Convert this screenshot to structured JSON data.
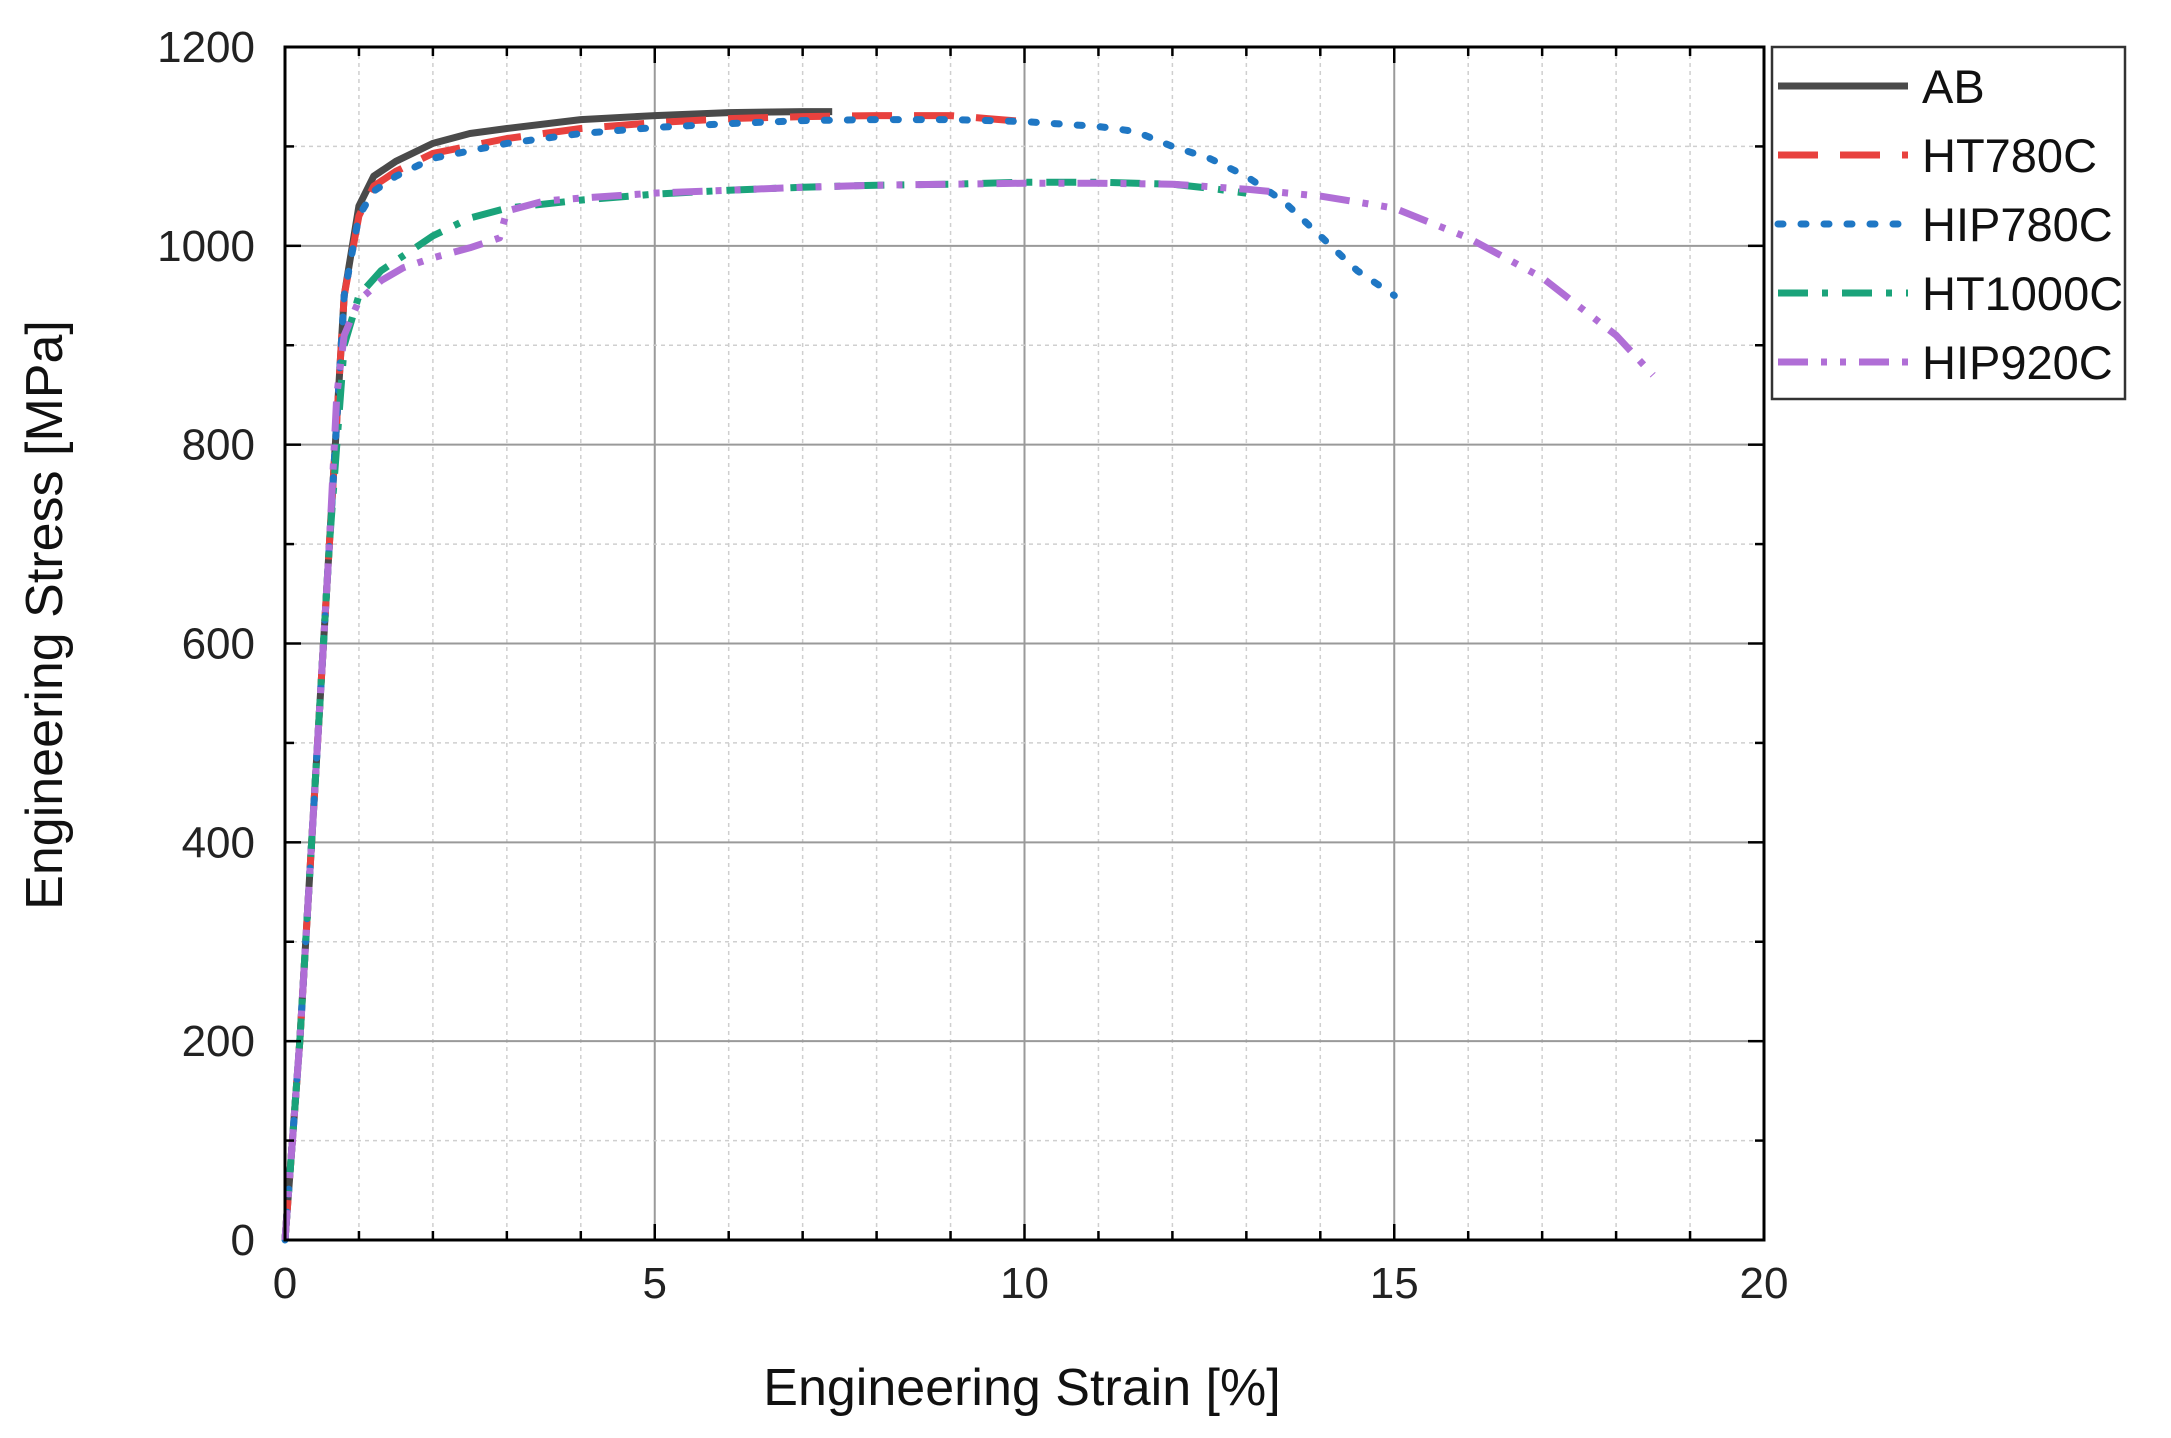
{
  "chart_data": {
    "type": "line",
    "title": "",
    "xlabel": "Engineering Strain [%]",
    "ylabel": "Engineering Stress [MPa]",
    "xlim": [
      0,
      20
    ],
    "ylim": [
      0,
      1200
    ],
    "x_ticks": [
      "0",
      "5",
      "10",
      "15",
      "20"
    ],
    "y_ticks": [
      "0",
      "200",
      "400",
      "600",
      "800",
      "1000",
      "1200"
    ],
    "grid": true,
    "legend_position": "top-right outside",
    "series": [
      {
        "name": "AB",
        "color": "#4a4a4a",
        "style": "solid",
        "points": [
          [
            0,
            0
          ],
          [
            0.2,
            200
          ],
          [
            0.4,
            450
          ],
          [
            0.6,
            700
          ],
          [
            0.8,
            950
          ],
          [
            1.0,
            1040
          ],
          [
            1.2,
            1070
          ],
          [
            1.5,
            1085
          ],
          [
            2.0,
            1103
          ],
          [
            2.5,
            1113
          ],
          [
            3.0,
            1118
          ],
          [
            4.0,
            1127
          ],
          [
            5.0,
            1131
          ],
          [
            6.0,
            1134
          ],
          [
            7.0,
            1135
          ],
          [
            7.4,
            1135
          ]
        ]
      },
      {
        "name": "HT780C",
        "color": "#e8413e",
        "style": "dash",
        "points": [
          [
            0,
            0
          ],
          [
            0.2,
            200
          ],
          [
            0.4,
            450
          ],
          [
            0.6,
            700
          ],
          [
            0.8,
            950
          ],
          [
            1.0,
            1030
          ],
          [
            1.2,
            1060
          ],
          [
            1.5,
            1075
          ],
          [
            2.0,
            1093
          ],
          [
            3.0,
            1108
          ],
          [
            4.0,
            1118
          ],
          [
            5.0,
            1124
          ],
          [
            6.0,
            1128
          ],
          [
            7.0,
            1130
          ],
          [
            8.0,
            1131
          ],
          [
            9.0,
            1131
          ],
          [
            9.5,
            1128
          ],
          [
            10.0,
            1125
          ]
        ]
      },
      {
        "name": "HIP780C",
        "color": "#1f77c4",
        "style": "dot",
        "points": [
          [
            0,
            0
          ],
          [
            0.2,
            200
          ],
          [
            0.4,
            450
          ],
          [
            0.6,
            700
          ],
          [
            0.8,
            950
          ],
          [
            1.0,
            1030
          ],
          [
            1.2,
            1055
          ],
          [
            1.5,
            1070
          ],
          [
            2.0,
            1088
          ],
          [
            3.0,
            1103
          ],
          [
            4.0,
            1113
          ],
          [
            5.0,
            1119
          ],
          [
            6.0,
            1123
          ],
          [
            7.0,
            1126
          ],
          [
            8.0,
            1127
          ],
          [
            9.0,
            1127
          ],
          [
            10.0,
            1125
          ],
          [
            11.0,
            1120
          ],
          [
            11.5,
            1115
          ],
          [
            12.0,
            1100
          ],
          [
            12.5,
            1088
          ],
          [
            13.0,
            1070
          ],
          [
            13.5,
            1045
          ],
          [
            14.0,
            1010
          ],
          [
            14.5,
            975
          ],
          [
            15.0,
            950
          ]
        ]
      },
      {
        "name": "HT1000C",
        "color": "#1aa37a",
        "style": "dashdot",
        "points": [
          [
            0,
            0
          ],
          [
            0.2,
            200
          ],
          [
            0.4,
            450
          ],
          [
            0.6,
            700
          ],
          [
            0.8,
            900
          ],
          [
            1.0,
            950
          ],
          [
            1.3,
            975
          ],
          [
            1.6,
            990
          ],
          [
            2.0,
            1010
          ],
          [
            2.5,
            1028
          ],
          [
            3.0,
            1038
          ],
          [
            4.0,
            1046
          ],
          [
            5.0,
            1052
          ],
          [
            6.0,
            1056
          ],
          [
            7.0,
            1059
          ],
          [
            8.0,
            1061
          ],
          [
            9.0,
            1062
          ],
          [
            10.0,
            1064
          ],
          [
            11.0,
            1064
          ],
          [
            12.0,
            1062
          ],
          [
            12.5,
            1058
          ],
          [
            13.0,
            1053
          ]
        ]
      },
      {
        "name": "HIP920C",
        "color": "#b06ed6",
        "style": "dashdotdot",
        "points": [
          [
            0,
            0
          ],
          [
            0.2,
            200
          ],
          [
            0.4,
            450
          ],
          [
            0.6,
            700
          ],
          [
            0.7,
            850
          ],
          [
            0.8,
            910
          ],
          [
            1.0,
            945
          ],
          [
            1.3,
            965
          ],
          [
            1.6,
            978
          ],
          [
            2.0,
            988
          ],
          [
            2.5,
            998
          ],
          [
            2.9,
            1008
          ],
          [
            3.0,
            1035
          ],
          [
            3.5,
            1045
          ],
          [
            4.0,
            1048
          ],
          [
            5.0,
            1053
          ],
          [
            6.0,
            1056
          ],
          [
            7.0,
            1059
          ],
          [
            8.0,
            1061
          ],
          [
            9.0,
            1062
          ],
          [
            10.0,
            1063
          ],
          [
            11.0,
            1063
          ],
          [
            12.0,
            1062
          ],
          [
            13.0,
            1057
          ],
          [
            14.0,
            1050
          ],
          [
            15.0,
            1038
          ],
          [
            16.0,
            1008
          ],
          [
            17.0,
            968
          ],
          [
            18.0,
            910
          ],
          [
            18.5,
            870
          ]
        ]
      }
    ]
  }
}
